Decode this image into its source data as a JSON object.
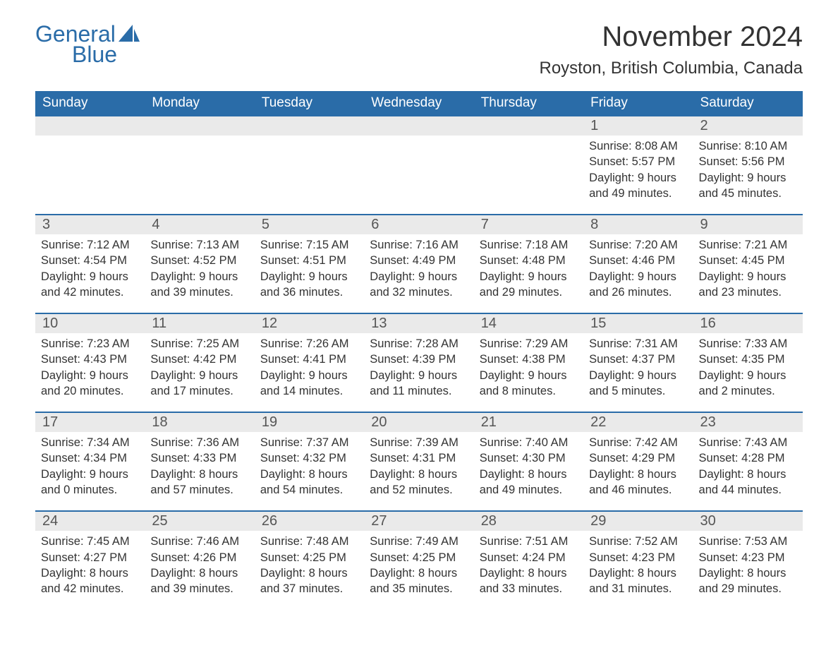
{
  "logo": {
    "part1": "General",
    "part2": "Blue"
  },
  "title": "November 2024",
  "location": "Royston, British Columbia, Canada",
  "colors": {
    "brand": "#2a6ca8",
    "header_bg": "#2a6ca8",
    "header_text": "#ffffff",
    "daynum_bg": "#eaeaea",
    "text": "#333333",
    "background": "#ffffff"
  },
  "fonts": {
    "title_size": 40,
    "location_size": 24,
    "dayhead_size": 19,
    "daynum_size": 20,
    "body_size": 16.5
  },
  "day_names": [
    "Sunday",
    "Monday",
    "Tuesday",
    "Wednesday",
    "Thursday",
    "Friday",
    "Saturday"
  ],
  "weeks": [
    [
      null,
      null,
      null,
      null,
      null,
      {
        "n": "1",
        "sunrise": "8:08 AM",
        "sunset": "5:57 PM",
        "dl1": "9 hours",
        "dl2": "and 49 minutes."
      },
      {
        "n": "2",
        "sunrise": "8:10 AM",
        "sunset": "5:56 PM",
        "dl1": "9 hours",
        "dl2": "and 45 minutes."
      }
    ],
    [
      {
        "n": "3",
        "sunrise": "7:12 AM",
        "sunset": "4:54 PM",
        "dl1": "9 hours",
        "dl2": "and 42 minutes."
      },
      {
        "n": "4",
        "sunrise": "7:13 AM",
        "sunset": "4:52 PM",
        "dl1": "9 hours",
        "dl2": "and 39 minutes."
      },
      {
        "n": "5",
        "sunrise": "7:15 AM",
        "sunset": "4:51 PM",
        "dl1": "9 hours",
        "dl2": "and 36 minutes."
      },
      {
        "n": "6",
        "sunrise": "7:16 AM",
        "sunset": "4:49 PM",
        "dl1": "9 hours",
        "dl2": "and 32 minutes."
      },
      {
        "n": "7",
        "sunrise": "7:18 AM",
        "sunset": "4:48 PM",
        "dl1": "9 hours",
        "dl2": "and 29 minutes."
      },
      {
        "n": "8",
        "sunrise": "7:20 AM",
        "sunset": "4:46 PM",
        "dl1": "9 hours",
        "dl2": "and 26 minutes."
      },
      {
        "n": "9",
        "sunrise": "7:21 AM",
        "sunset": "4:45 PM",
        "dl1": "9 hours",
        "dl2": "and 23 minutes."
      }
    ],
    [
      {
        "n": "10",
        "sunrise": "7:23 AM",
        "sunset": "4:43 PM",
        "dl1": "9 hours",
        "dl2": "and 20 minutes."
      },
      {
        "n": "11",
        "sunrise": "7:25 AM",
        "sunset": "4:42 PM",
        "dl1": "9 hours",
        "dl2": "and 17 minutes."
      },
      {
        "n": "12",
        "sunrise": "7:26 AM",
        "sunset": "4:41 PM",
        "dl1": "9 hours",
        "dl2": "and 14 minutes."
      },
      {
        "n": "13",
        "sunrise": "7:28 AM",
        "sunset": "4:39 PM",
        "dl1": "9 hours",
        "dl2": "and 11 minutes."
      },
      {
        "n": "14",
        "sunrise": "7:29 AM",
        "sunset": "4:38 PM",
        "dl1": "9 hours",
        "dl2": "and 8 minutes."
      },
      {
        "n": "15",
        "sunrise": "7:31 AM",
        "sunset": "4:37 PM",
        "dl1": "9 hours",
        "dl2": "and 5 minutes."
      },
      {
        "n": "16",
        "sunrise": "7:33 AM",
        "sunset": "4:35 PM",
        "dl1": "9 hours",
        "dl2": "and 2 minutes."
      }
    ],
    [
      {
        "n": "17",
        "sunrise": "7:34 AM",
        "sunset": "4:34 PM",
        "dl1": "9 hours",
        "dl2": "and 0 minutes."
      },
      {
        "n": "18",
        "sunrise": "7:36 AM",
        "sunset": "4:33 PM",
        "dl1": "8 hours",
        "dl2": "and 57 minutes."
      },
      {
        "n": "19",
        "sunrise": "7:37 AM",
        "sunset": "4:32 PM",
        "dl1": "8 hours",
        "dl2": "and 54 minutes."
      },
      {
        "n": "20",
        "sunrise": "7:39 AM",
        "sunset": "4:31 PM",
        "dl1": "8 hours",
        "dl2": "and 52 minutes."
      },
      {
        "n": "21",
        "sunrise": "7:40 AM",
        "sunset": "4:30 PM",
        "dl1": "8 hours",
        "dl2": "and 49 minutes."
      },
      {
        "n": "22",
        "sunrise": "7:42 AM",
        "sunset": "4:29 PM",
        "dl1": "8 hours",
        "dl2": "and 46 minutes."
      },
      {
        "n": "23",
        "sunrise": "7:43 AM",
        "sunset": "4:28 PM",
        "dl1": "8 hours",
        "dl2": "and 44 minutes."
      }
    ],
    [
      {
        "n": "24",
        "sunrise": "7:45 AM",
        "sunset": "4:27 PM",
        "dl1": "8 hours",
        "dl2": "and 42 minutes."
      },
      {
        "n": "25",
        "sunrise": "7:46 AM",
        "sunset": "4:26 PM",
        "dl1": "8 hours",
        "dl2": "and 39 minutes."
      },
      {
        "n": "26",
        "sunrise": "7:48 AM",
        "sunset": "4:25 PM",
        "dl1": "8 hours",
        "dl2": "and 37 minutes."
      },
      {
        "n": "27",
        "sunrise": "7:49 AM",
        "sunset": "4:25 PM",
        "dl1": "8 hours",
        "dl2": "and 35 minutes."
      },
      {
        "n": "28",
        "sunrise": "7:51 AM",
        "sunset": "4:24 PM",
        "dl1": "8 hours",
        "dl2": "and 33 minutes."
      },
      {
        "n": "29",
        "sunrise": "7:52 AM",
        "sunset": "4:23 PM",
        "dl1": "8 hours",
        "dl2": "and 31 minutes."
      },
      {
        "n": "30",
        "sunrise": "7:53 AM",
        "sunset": "4:23 PM",
        "dl1": "8 hours",
        "dl2": "and 29 minutes."
      }
    ]
  ],
  "labels": {
    "sunrise": "Sunrise: ",
    "sunset": "Sunset: ",
    "daylight": "Daylight: "
  }
}
